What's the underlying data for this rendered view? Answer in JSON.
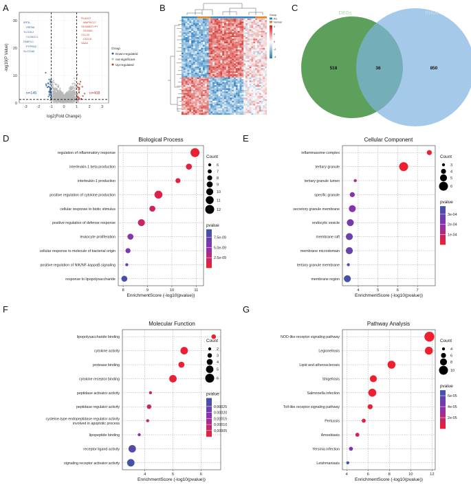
{
  "panel_letters": [
    "A",
    "B",
    "C",
    "D",
    "E",
    "F",
    "G"
  ],
  "chart_data": [
    {
      "id": "A",
      "type": "scatter",
      "title": "",
      "xlabel": "log2(Fold Change)",
      "ylabel": "-log10(P Value)",
      "x_ticks": [
        "-3",
        "-2",
        "-1",
        "0",
        "1",
        "2",
        "3"
      ],
      "y_ticks": [
        "0",
        "10",
        "20",
        "30"
      ],
      "xlim": [
        -3.5,
        3.5
      ],
      "ylim": [
        0,
        33
      ],
      "thresholds": {
        "x": [
          -1,
          1
        ],
        "y": 1.3
      },
      "legend": {
        "title": "Group",
        "items": [
          "Down-regulated",
          "not-significant",
          "Up-regulated"
        ],
        "colors": [
          "#2f5f98",
          "#b7b7b7",
          "#c0392b"
        ]
      },
      "annotations": [
        "n=145",
        "n=408"
      ],
      "down_genes": [
        "IRF3L",
        "HSPA8",
        "TLCD5.2",
        "CLDN2C1",
        "FABP4.1",
        "PTPRN2",
        "SLC22A5"
      ],
      "up_genes": [
        "PLA2G7",
        "MMP9/C17",
        "S100A8/CYP7",
        "S100A9",
        "CCL20",
        "CD2L8",
        "SAA4"
      ]
    },
    {
      "id": "B",
      "type": "heatmap",
      "title": "",
      "legend": {
        "title": "Group",
        "items": [
          "AS",
          "Normal"
        ],
        "colors": [
          "#2e86c1",
          "#e67e22"
        ]
      },
      "color_scale": [
        "4",
        "2",
        "0",
        "-2",
        "-4"
      ]
    },
    {
      "id": "C",
      "type": "venn",
      "sets": [
        "DEGs",
        "PHGs"
      ],
      "counts": {
        "left_only": "518",
        "overlap": "36",
        "right_only": "850"
      }
    },
    {
      "id": "D",
      "type": "scatter",
      "title": "Biological Process",
      "xlabel": "EnrichmentScore (-log10(pvalue))",
      "x_ticks": [
        8,
        9,
        10,
        11
      ],
      "xlim": [
        7.8,
        11.3
      ],
      "categories": [
        "regulation of inflammatory response",
        "interleukin-1 beta production",
        "interleukin-1 production",
        "positive regulation of cytokine production",
        "cellular response to biotic stimulus",
        "positive regulation of defense response",
        "leukocyte proliferation",
        "cellular response to molecule of bacterial origin",
        "positive regulation of NIK/NF-kappaB signaling",
        "response to lipopolysaccharide"
      ],
      "x": [
        10.95,
        10.7,
        10.25,
        9.45,
        9.2,
        8.75,
        8.3,
        8.2,
        8.15,
        8.05
      ],
      "count": [
        12,
        9,
        8,
        11,
        9,
        10,
        9,
        8,
        6,
        9
      ],
      "pvalue": [
        1e-10,
        5e-10,
        8e-10,
        1e-09,
        1.5e-09,
        2e-09,
        5.5e-09,
        6e-09,
        7e-09,
        9e-09
      ],
      "size_legend": {
        "title": "Count",
        "values": [
          6,
          7,
          8,
          9,
          10,
          11,
          12
        ]
      },
      "color_legend": {
        "title": "pvalue",
        "labels": [
          "7.5e-09",
          "5.0e-09",
          "2.5e-09"
        ],
        "label_values": [
          7.5e-09,
          5e-09,
          2.5e-09
        ],
        "range": [
          0,
          9.5e-09
        ]
      }
    },
    {
      "id": "E",
      "type": "scatter",
      "title": "Cellular Component",
      "xlabel": "EnrichmentScore (-log10(pvalue))",
      "x_ticks": [
        4,
        5,
        6,
        7
      ],
      "xlim": [
        3.2,
        7.9
      ],
      "categories": [
        "inflammasome complex",
        "tertiary granule",
        "tertiary granule lumen",
        "specific granule",
        "secretory granule membrane",
        "endocytic vesicle",
        "membrane raft",
        "membrane microdomain",
        "tertiary granule membrane",
        "membrane region"
      ],
      "x": [
        7.6,
        6.3,
        3.85,
        3.7,
        3.7,
        3.6,
        3.55,
        3.55,
        3.5,
        3.45
      ],
      "count": [
        4,
        6,
        3,
        4,
        5,
        5,
        5,
        5,
        3,
        5
      ],
      "pvalue": [
        2e-08,
        5e-07,
        0.00014,
        0.0002,
        0.0002,
        0.00025,
        0.00028,
        0.00028,
        0.00032,
        0.00036
      ],
      "size_legend": {
        "title": "Count",
        "values": [
          3,
          4,
          5,
          6
        ]
      },
      "color_legend": {
        "title": "pvalue",
        "labels": [
          "3e-04",
          "2e-04",
          "1e-04"
        ],
        "label_values": [
          0.0003,
          0.0002,
          0.0001
        ],
        "range": [
          0,
          0.00038
        ]
      }
    },
    {
      "id": "F",
      "type": "scatter",
      "title": "Molecular Function",
      "xlabel": "EnrichmentScore (-log10(pvalue))",
      "x_ticks": [
        4,
        5,
        6
      ],
      "xlim": [
        3.2,
        6.7
      ],
      "categories": [
        "lipopolysaccharide binding",
        "cytokine activity",
        "protease binding",
        "cytokine receptor binding",
        "peptidase activator activity",
        "peptidase regulator activity",
        "cysteine-type endopeptidase regulator activity involved in apoptotic process",
        "lipopeptide binding",
        "receptor ligand activity",
        "signaling receptor activator activity"
      ],
      "x": [
        6.45,
        5.4,
        5.3,
        5.0,
        4.2,
        4.15,
        4.1,
        3.8,
        3.55,
        3.5
      ],
      "count": [
        3,
        5,
        4,
        5,
        2,
        3,
        2,
        2,
        5,
        5
      ],
      "pvalue": [
        3.5e-07,
        4e-06,
        5e-06,
        1e-05,
        6e-05,
        7e-05,
        8e-05,
        0.00016,
        0.00028,
        0.00032
      ],
      "size_legend": {
        "title": "Count",
        "values": [
          2,
          3,
          4,
          5,
          6
        ]
      },
      "color_legend": {
        "title": "pvalue",
        "labels": [
          "0.00025",
          "0.00020",
          "0.00015",
          "0.00010",
          "0.00005"
        ],
        "label_values": [
          0.00025,
          0.0002,
          0.00015,
          0.0001,
          5e-05
        ],
        "range": [
          0,
          0.00032
        ]
      }
    },
    {
      "id": "G",
      "type": "scatter",
      "title": "Pathway Analysis",
      "xlabel": "EnrichmentScore (-log10(pvalue))",
      "x_ticks": [
        4,
        6,
        8,
        10,
        12
      ],
      "xlim": [
        3.6,
        12.3
      ],
      "categories": [
        "NOD-like receptor signaling pathway",
        "Legionellosis",
        "Lipid and atherosclerosis",
        "Shigellosis",
        "Salmonella infection",
        "Toll-like receptor signaling pathway",
        "Pertussis",
        "Amoebiasis",
        "Yersinia infection",
        "Leishmaniasis"
      ],
      "x": [
        11.75,
        11.7,
        8.2,
        6.5,
        6.4,
        6.2,
        5.6,
        5.0,
        4.4,
        4.1
      ],
      "count": [
        11,
        9,
        9,
        8,
        9,
        6,
        5,
        5,
        5,
        4
      ],
      "pvalue": [
        1e-12,
        2e-12,
        5e-09,
        3e-07,
        4e-07,
        6e-07,
        3e-06,
        1e-05,
        4e-05,
        7e-05
      ],
      "size_legend": {
        "title": "Count",
        "values": [
          4,
          6,
          8,
          10
        ]
      },
      "color_legend": {
        "title": "pvalue",
        "labels": [
          "6e-05",
          "4e-05",
          "2e-05"
        ],
        "label_values": [
          6e-05,
          4e-05,
          2e-05
        ],
        "range": [
          0,
          7e-05
        ]
      }
    }
  ],
  "colors": {
    "low_p": "#ee1f2f",
    "mid_p": "#8e2fae",
    "high_p": "#3f54a8",
    "venn_left": "#3f8f3f",
    "venn_right": "#7fb4e0",
    "down": "#2f5f98",
    "up": "#c0392b",
    "ns": "#b7b7b7"
  }
}
